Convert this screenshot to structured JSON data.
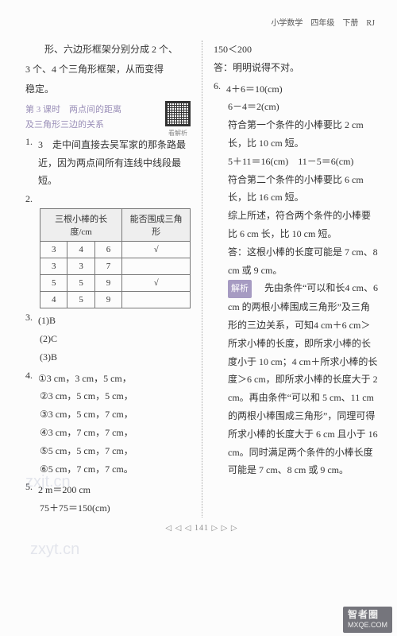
{
  "header": {
    "text": "小学数学　四年级　下册　RJ"
  },
  "left": {
    "intro1": "形、六边形框架分别分成 2 个、",
    "intro2": "3 个、4 个三角形框架，从而变得",
    "intro3": "稳定。",
    "lesson_line1": "第 3 课时　两点间的距离",
    "lesson_line2": "及三角形三边的关系",
    "qr_label": "看解析",
    "q1_n": "1.",
    "q1_pre": "3",
    "q1_text": "　走中间直接去吴军家的那条路最近，因为两点间所有连线中线段最短。",
    "q2_n": "2.",
    "table": {
      "head1": "三根小棒的长度/cm",
      "head2": "能否围成三角形",
      "rows": [
        {
          "a": "3",
          "b": "4",
          "c": "6",
          "ok": "√"
        },
        {
          "a": "3",
          "b": "3",
          "c": "7",
          "ok": ""
        },
        {
          "a": "5",
          "b": "5",
          "c": "9",
          "ok": "√"
        },
        {
          "a": "4",
          "b": "5",
          "c": "9",
          "ok": ""
        }
      ]
    },
    "q3_n": "3.",
    "q3_1": "(1)B",
    "q3_2": "(2)C",
    "q3_3": "(3)B",
    "q4_n": "4.",
    "q4_1": "①3 cm，3 cm，5 cm，",
    "q4_2": "②3 cm，5 cm，5 cm，",
    "q4_3": "③3 cm，5 cm，7 cm，",
    "q4_4": "④3 cm，7 cm，7 cm，",
    "q4_5": "⑤5 cm，5 cm，7 cm，",
    "q4_6": "⑥5 cm，7 cm，7 cm。",
    "q5_n": "5.",
    "q5_1": "2 m＝200 cm",
    "q5_2": "75＋75＝150(cm)"
  },
  "right": {
    "r1": "150＜200",
    "r2": "答：明明说得不对。",
    "q6_n": "6.",
    "q6_1": "4＋6＝10(cm)",
    "q6_2": "6－4＝2(cm)",
    "q6_3": "符合第一个条件的小棒要比 2 cm长，比 10 cm 短。",
    "q6_4": "5＋11＝16(cm)　11－5＝6(cm)",
    "q6_5": "符合第二个条件的小棒要比 6 cm长，比 16 cm 短。",
    "q6_6": "综上所述，符合两个条件的小棒要比 6 cm 长，比 10 cm 短。",
    "q6_7": "答：这根小棒的长度可能是 7 cm、8 cm 或 9 cm。",
    "ex_label": "解析",
    "ex": "　先由条件“可以和长4 cm、6 cm 的两根小棒围成三角形”及三角形的三边关系，可知4 cm＋6 cm＞所求小棒的长度，即所求小棒的长度小于 10 cm；4 cm＋所求小棒的长度＞6 cm，即所求小棒的长度大于 2 cm。再由条件“可以和 5 cm、11 cm 的两根小棒围成三角形”，同理可得所求小棒的长度大于 6 cm 且小于 16 cm。同时满足两个条件的小棒长度可能是 7 cm、8 cm 或 9 cm。"
  },
  "footer": {
    "page": "◁ ◁ ◁ 141 ▷ ▷ ▷"
  },
  "brand": {
    "l1": "智者圈",
    "l2": "MXQE.COM"
  },
  "wm": {
    "t1": "zxjt.cn",
    "t2": "zxyt.cn"
  }
}
